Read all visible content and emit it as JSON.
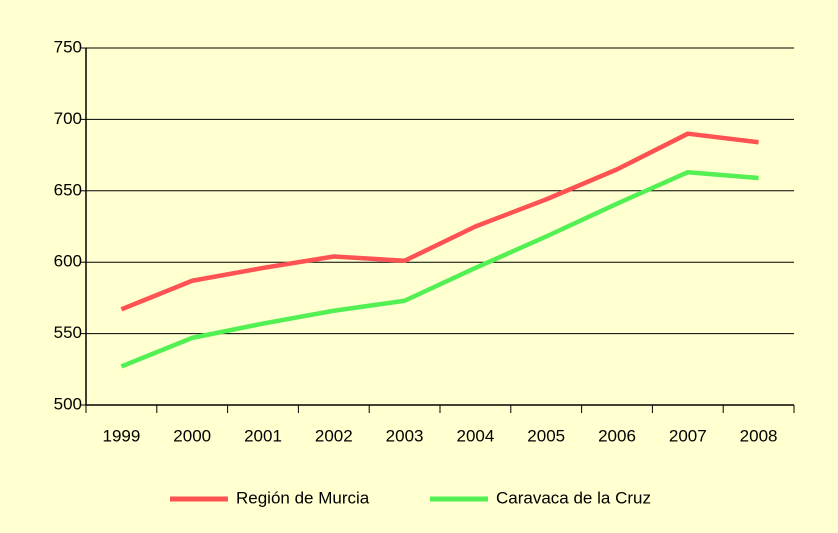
{
  "chart_data": {
    "type": "line",
    "categories": [
      "1999",
      "2000",
      "2001",
      "2002",
      "2003",
      "2004",
      "2005",
      "2006",
      "2007",
      "2008"
    ],
    "series": [
      {
        "name": "Región de Murcia",
        "color": "#ff5252",
        "values": [
          567,
          587,
          596,
          604,
          601,
          625,
          644,
          665,
          690,
          684
        ]
      },
      {
        "name": "Caravaca de la Cruz",
        "color": "#52f052",
        "values": [
          527,
          547,
          557,
          566,
          573,
          596,
          618,
          641,
          663,
          659
        ]
      }
    ],
    "ylim": [
      500,
      750
    ],
    "yticks": [
      500,
      550,
      600,
      650,
      700,
      750
    ],
    "grid": true,
    "legend": "bottom"
  }
}
